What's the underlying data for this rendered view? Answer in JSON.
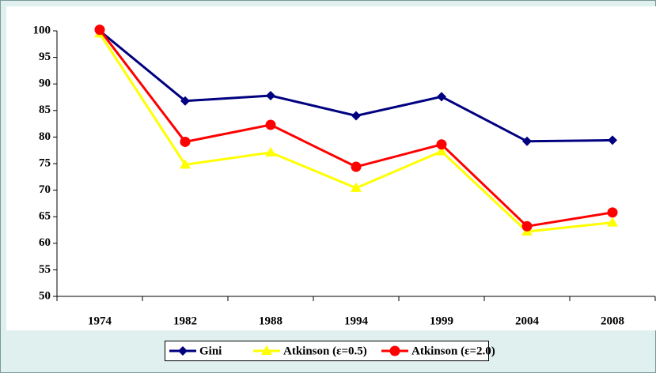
{
  "chart_data": {
    "type": "line",
    "categories": [
      "1974",
      "1982",
      "1988",
      "1994",
      "1999",
      "2004",
      "2008"
    ],
    "series": [
      {
        "name": "Gini",
        "color": "#000080",
        "marker": "diamond",
        "values": [
          100,
          86.8,
          87.8,
          84,
          87.6,
          79.2,
          79.4
        ]
      },
      {
        "name": "Atkinson (ε=0.5)",
        "color": "#ffff00",
        "marker": "triangle",
        "values": [
          99.5,
          74.8,
          77.1,
          70.4,
          77.3,
          62.2,
          63.9
        ]
      },
      {
        "name": "Atkinson (ε=2.0)",
        "color": "#ff0000",
        "marker": "circle",
        "values": [
          100.2,
          79.1,
          82.3,
          74.4,
          78.6,
          63.2,
          65.8
        ]
      }
    ],
    "ylim": [
      50,
      100
    ],
    "yticks": [
      50,
      55,
      60,
      65,
      70,
      75,
      80,
      85,
      90,
      95,
      100
    ],
    "legend": "bottom"
  }
}
